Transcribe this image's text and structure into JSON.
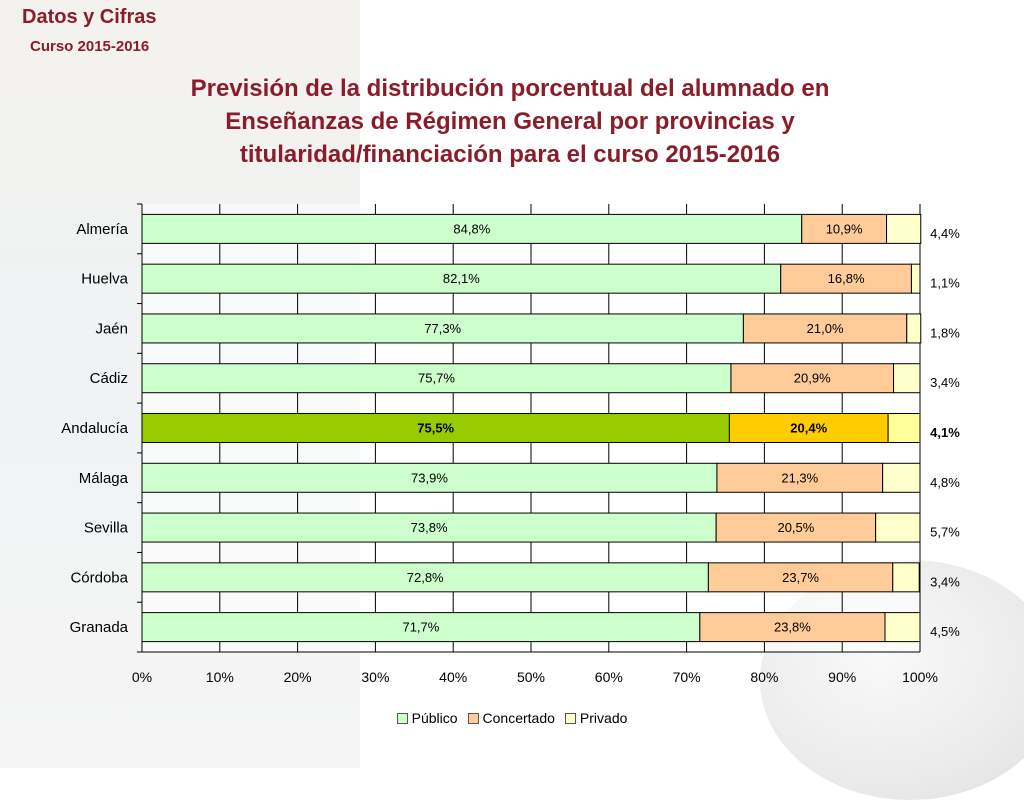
{
  "header": {
    "brand": "Datos y Cifras",
    "course": "Curso 2015-2016",
    "title": "Previsión de la distribución porcentual del alumnado en Enseñanzas de Régimen General por provincias y titularidad/financiación para el curso 2015-2016"
  },
  "colors": {
    "publico": "#ccffcc",
    "concertado": "#ffcc99",
    "privado": "#ffffcc",
    "highlight_publico": "#99cc00",
    "highlight_concertado": "#ffcc00",
    "highlight_privado": "#ffff99"
  },
  "chart_data": {
    "type": "bar",
    "orientation": "horizontal",
    "stacked": true,
    "categories": [
      "Almería",
      "Huelva",
      "Jaén",
      "Cádiz",
      "Andalucía",
      "Málaga",
      "Sevilla",
      "Córdoba",
      "Granada"
    ],
    "highlight": "Andalucía",
    "series": [
      {
        "name": "Público",
        "values": [
          84.8,
          82.1,
          77.3,
          75.7,
          75.5,
          73.9,
          73.8,
          72.8,
          71.7
        ],
        "labels": [
          "84,8%",
          "82,1%",
          "77,3%",
          "75,7%",
          "75,5%",
          "73,9%",
          "73,8%",
          "72,8%",
          "71,7%"
        ]
      },
      {
        "name": "Concertado",
        "values": [
          10.9,
          16.8,
          21.0,
          20.9,
          20.4,
          21.3,
          20.5,
          23.7,
          23.8
        ],
        "labels": [
          "10,9%",
          "16,8%",
          "21,0%",
          "20,9%",
          "20,4%",
          "21,3%",
          "20,5%",
          "23,7%",
          "23,8%"
        ]
      },
      {
        "name": "Privado",
        "values": [
          4.4,
          1.1,
          1.8,
          3.4,
          4.1,
          4.8,
          5.7,
          3.4,
          4.5
        ],
        "labels": [
          "4,4%",
          "1,1%",
          "1,8%",
          "3,4%",
          "4,1%",
          "4,8%",
          "5,7%",
          "3,4%",
          "4,5%"
        ]
      }
    ],
    "xlim": [
      0,
      100
    ],
    "xticks": [
      "0%",
      "10%",
      "20%",
      "30%",
      "40%",
      "50%",
      "60%",
      "70%",
      "80%",
      "90%",
      "100%"
    ],
    "grid": true,
    "legend_position": "bottom"
  }
}
